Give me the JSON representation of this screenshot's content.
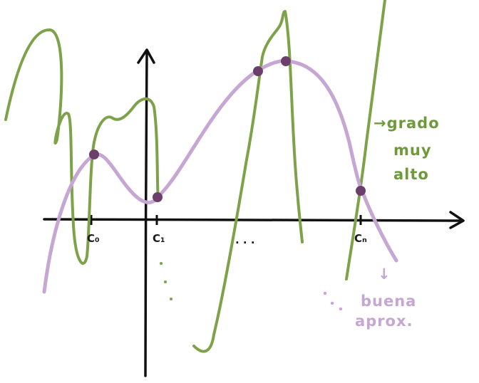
{
  "colors": {
    "axis": "#111111",
    "high_degree_curve": "#7ea24a",
    "approx_curve": "#c6a6d3",
    "point": "#6b3e6b",
    "green_text": "#6f9a3c",
    "purple_text": "#c6a6d3"
  },
  "labels": {
    "c0": "C₀",
    "c1": "C₁",
    "cn": "Cₙ",
    "dots_axis": ". . .",
    "green_note": [
      "→grado",
      "muy",
      "alto"
    ],
    "purple_note": [
      "buena",
      "aprox."
    ],
    "purple_arrow": "↓"
  }
}
